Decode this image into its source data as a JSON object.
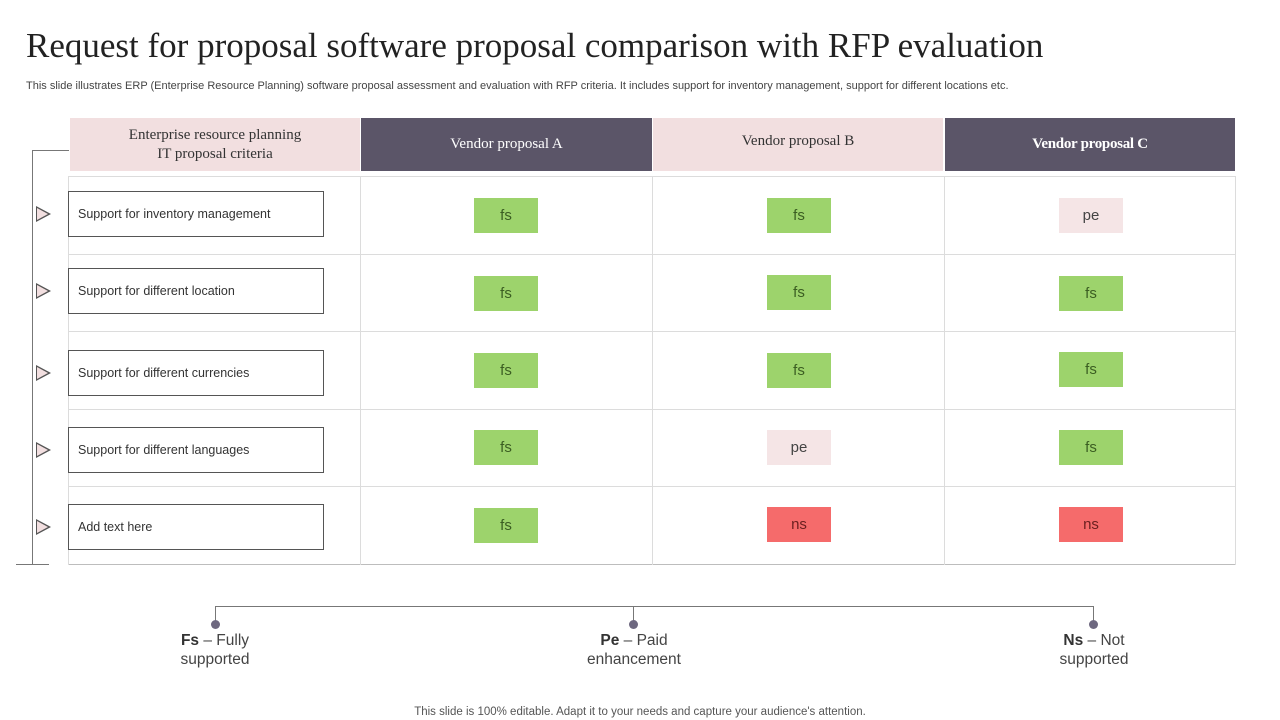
{
  "title": "Request for proposal software proposal comparison with RFP evaluation",
  "subtitle": "This slide illustrates ERP (Enterprise Resource Planning) software proposal assessment and evaluation with RFP criteria. It includes support for inventory management, support for different locations etc.",
  "headers": {
    "criteria_line1": "Enterprise resource planning",
    "criteria_line2": "IT proposal criteria",
    "vendor_a": "Vendor proposal A",
    "vendor_b": "Vendor proposal B",
    "vendor_c": "Vendor proposal C"
  },
  "rows": [
    {
      "criterion": "Support for inventory  management",
      "a": "fs",
      "b": "fs",
      "c": "pe"
    },
    {
      "criterion": "Support for different  location",
      "a": "fs",
      "b": "fs",
      "c": "fs"
    },
    {
      "criterion": "Support for different  currencies",
      "a": "fs",
      "b": "fs",
      "c": "fs"
    },
    {
      "criterion": "Support for different  languages",
      "a": "fs",
      "b": "pe",
      "c": "fs"
    },
    {
      "criterion": "Add text here",
      "a": "fs",
      "b": "ns",
      "c": "ns"
    }
  ],
  "legend": {
    "fs_abbr": "Fs",
    "fs_rest": " – Fully",
    "fs_line2": "supported",
    "pe_abbr": "Pe",
    "pe_rest": " – Paid",
    "pe_line2": "enhancement",
    "ns_abbr": "Ns",
    "ns_rest": " – Not",
    "ns_line2": "supported"
  },
  "colors": {
    "fs": "#9dd36c",
    "pe": "#f5e5e6",
    "ns": "#f56b6b",
    "header_dark": "#5b5568",
    "header_pink": "#f2dfe0"
  },
  "footer": "This slide is 100% editable. Adapt it to your needs and capture your audience's attention."
}
